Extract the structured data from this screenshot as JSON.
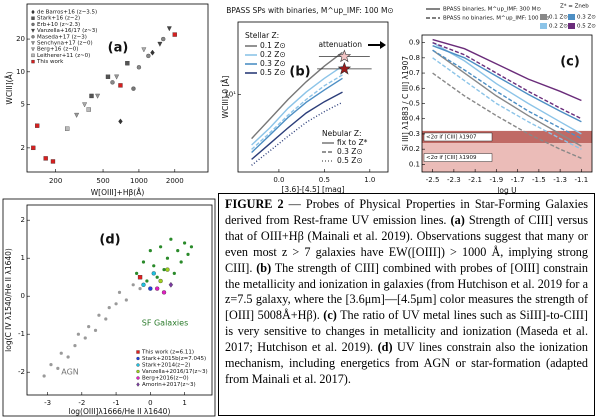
{
  "chart_data": [
    {
      "type": "scatter",
      "label": "(a)",
      "xlabel": "W[OIII]+Hβ(Å)",
      "ylabel": "WCIII](Å)",
      "xlog": true,
      "ylog": true,
      "xlim": [
        115,
        3800
      ],
      "ylim": [
        1.2,
        42
      ],
      "xticks": [
        200,
        500,
        1000,
        2000
      ],
      "yticks": [
        2,
        5,
        10,
        20
      ],
      "series": [
        {
          "name": "de Barros+16 (z~3.5)",
          "color": "#333333",
          "marker": "diamond",
          "x": [
            700,
            1300
          ],
          "y": [
            3.5,
            15
          ]
        },
        {
          "name": "Stark+16 (z~2)",
          "color": "#555555",
          "marker": "square",
          "x": [
            400,
            550,
            800
          ],
          "y": [
            6,
            9,
            12
          ]
        },
        {
          "name": "Erb+10 (z~2.3)",
          "color": "#777777",
          "marker": "circle",
          "x": [
            900
          ],
          "y": [
            7
          ]
        },
        {
          "name": "Vanzella+16/17 (z~3)",
          "color": "#444444",
          "marker": "triangle",
          "x": [
            1500,
            1800
          ],
          "y": [
            18,
            25
          ]
        },
        {
          "name": "Maseda+17 (z~3)",
          "color": "#888888",
          "marker": "circle",
          "x": [
            600,
            1000,
            1200,
            1600
          ],
          "y": [
            8,
            11,
            14,
            20
          ]
        },
        {
          "name": "Senchyna+17 (z~0)",
          "color": "#999999",
          "marker": "triangle",
          "x": [
            300,
            450,
            650
          ],
          "y": [
            4,
            6,
            9
          ]
        },
        {
          "name": "Berg+16 (z~0)",
          "color": "#aaaaaa",
          "marker": "triangle",
          "x": [
            350,
            1100
          ],
          "y": [
            5,
            16
          ]
        },
        {
          "name": "Leitherer+11 (z~0)",
          "color": "#bbbbbb",
          "marker": "square",
          "x": [
            250,
            380
          ],
          "y": [
            3,
            4.5
          ]
        },
        {
          "name": "This work",
          "color": "#d62020",
          "marker": "square",
          "x": [
            140,
            130,
            165,
            190,
            700,
            2000
          ],
          "y": [
            3.2,
            2.0,
            1.6,
            1.5,
            7.5,
            22
          ]
        }
      ]
    },
    {
      "type": "line",
      "label": "(b)",
      "title": "BPASS SPs with binaries, M^up_IMF: 100 M⊙",
      "xlabel": "[3.6]-[4.5] [mag]",
      "ylabel": "WCIII],0 [Å]",
      "annotation": "attenuation",
      "ylog": true,
      "xlim": [
        -0.45,
        1.2
      ],
      "ylim": [
        2,
        45
      ],
      "xticks": [
        {
          "value": 0,
          "label": "0.0"
        },
        {
          "value": 0.5,
          "label": "0.5"
        },
        {
          "value": 1,
          "label": "1.0"
        }
      ],
      "yticks": [
        {
          "value": 10,
          "label": "10¹"
        }
      ],
      "stellar": {
        "title": "Stellar Z:",
        "names": [
          "0.1 Z⊙",
          "0.2 Z⊙",
          "0.3 Z⊙",
          "0.5 Z⊙"
        ],
        "colors": [
          "#777777",
          "#8cc4e8",
          "#4d8fc4",
          "#2c3e7a"
        ]
      },
      "nebular": {
        "title": "Nebular Z:",
        "names": [
          "fix to Z*",
          "0.3 Z⊙",
          "0.5 Z⊙"
        ],
        "dashes": [
          "none",
          "4 2",
          "1 2"
        ]
      },
      "x": [
        -0.3,
        -0.1,
        0.1,
        0.3,
        0.5,
        0.7
      ],
      "series": [
        {
          "stellar": 0,
          "nebular": 0,
          "y": [
            4,
            6,
            9,
            13,
            18,
            24
          ]
        },
        {
          "stellar": 1,
          "nebular": 0,
          "y": [
            3.5,
            5,
            7.5,
            10.5,
            14,
            18
          ]
        },
        {
          "stellar": 2,
          "nebular": 0,
          "y": [
            3,
            4.3,
            6.2,
            8.5,
            11,
            14
          ]
        },
        {
          "stellar": 3,
          "nebular": 0,
          "y": [
            2.6,
            3.6,
            5,
            6.8,
            8.6,
            10.5
          ]
        },
        {
          "stellar": 1,
          "nebular": 1,
          "y": [
            3.2,
            4.5,
            6.5,
            9,
            12,
            15
          ]
        },
        {
          "stellar": 3,
          "nebular": 2,
          "y": [
            2.3,
            3.1,
            4.2,
            5.6,
            7,
            8.5
          ]
        }
      ],
      "markers": [
        {
          "x": 0.72,
          "y": 22,
          "xerr": 0.28,
          "color": "#f2c4c4"
        },
        {
          "x": 0.72,
          "y": 17,
          "xerr": 0.3,
          "color": "#9b1c1c"
        }
      ]
    },
    {
      "type": "line",
      "label": "(c)",
      "xlabel": "log U",
      "ylabel": "Si III] λ1883 / C III] λ1907",
      "xlim": [
        -2.6,
        -1.0
      ],
      "ylim": [
        0.05,
        0.95
      ],
      "xticks": [
        -2.5,
        -2.3,
        -2.1,
        -1.9,
        -1.7,
        -1.5,
        -1.3,
        -1.1
      ],
      "yticks": [
        0.1,
        0.2,
        0.3,
        0.4,
        0.5,
        0.6,
        0.7,
        0.8,
        0.9
      ],
      "styles": {
        "names": [
          "BPASS binaries, M^up_IMF: 300 M⊙",
          "BPASS no binaries, M^up_IMF: 100 M⊙"
        ],
        "dashes": [
          "none",
          "4 2"
        ]
      },
      "metallicity": {
        "title": "Z* = Zneb",
        "names": [
          "0.1 Z⊙",
          "0.2 Z⊙",
          "0.3 Z⊙",
          "0.5 Z⊙"
        ],
        "colors": [
          "#888888",
          "#8cc4e8",
          "#4d8fc4",
          "#6a2c7a"
        ]
      },
      "bands": [
        {
          "label": "<2σ if [CIII] λ1907",
          "y0": 0.24,
          "y1": 0.32,
          "color": "#b5504a"
        },
        {
          "label": "<2σ if [CIII] λ1909",
          "y0": 0.05,
          "y1": 0.24,
          "color": "#e8b0ac"
        }
      ],
      "x": [
        -2.5,
        -2.2,
        -1.9,
        -1.6,
        -1.3,
        -1.1
      ],
      "series": [
        {
          "style": 0,
          "z": 0,
          "y": [
            0.85,
            0.7,
            0.55,
            0.42,
            0.3,
            0.22
          ]
        },
        {
          "style": 0,
          "z": 1,
          "y": [
            0.9,
            0.78,
            0.63,
            0.5,
            0.38,
            0.3
          ]
        },
        {
          "style": 0,
          "z": 2,
          "y": [
            0.88,
            0.8,
            0.68,
            0.56,
            0.45,
            0.38
          ]
        },
        {
          "style": 0,
          "z": 3,
          "y": [
            0.92,
            0.86,
            0.76,
            0.66,
            0.58,
            0.52
          ]
        },
        {
          "style": 1,
          "z": 0,
          "y": [
            0.7,
            0.55,
            0.42,
            0.3,
            0.2,
            0.14
          ]
        },
        {
          "style": 1,
          "z": 1,
          "y": [
            0.8,
            0.65,
            0.5,
            0.38,
            0.27,
            0.2
          ]
        },
        {
          "style": 1,
          "z": 2,
          "y": [
            0.85,
            0.72,
            0.58,
            0.45,
            0.34,
            0.27
          ]
        },
        {
          "style": 1,
          "z": 3,
          "y": [
            0.9,
            0.82,
            0.7,
            0.58,
            0.47,
            0.4
          ]
        }
      ]
    },
    {
      "type": "scatter",
      "label": "(d)",
      "xlabel": "log(OIII]λ1666/He II λ1640)",
      "ylabel": "log(C IV λ1540/He II λ1640)",
      "xlim": [
        -3.6,
        1.8
      ],
      "ylim": [
        -2.6,
        2.4
      ],
      "xticks": [
        -3,
        -2,
        -1,
        0,
        1
      ],
      "yticks": [
        -2,
        -1,
        0,
        1,
        2
      ],
      "annotations": [
        {
          "text": "AGN",
          "color": "#777777"
        },
        {
          "text": "SF Galaxies",
          "color": "#2a7a2a"
        }
      ],
      "clouds": [
        {
          "color": "#9a9a9a",
          "x": [
            -3.1,
            -2.9,
            -2.7,
            -2.6,
            -2.4,
            -2.2,
            -2.1,
            -1.9,
            -1.8,
            -1.6,
            -1.5,
            -1.3,
            -1.2,
            -1.0,
            -0.9,
            -0.7,
            -0.5,
            -0.3
          ],
          "y": [
            -2.1,
            -1.8,
            -1.9,
            -1.5,
            -1.6,
            -1.3,
            -1.0,
            -1.1,
            -0.8,
            -0.9,
            -0.5,
            -0.6,
            -0.3,
            -0.2,
            0.1,
            -0.1,
            0.3,
            0.2
          ]
        },
        {
          "color": "#2a8a2a",
          "x": [
            -0.4,
            -0.2,
            0,
            0.1,
            0.3,
            0.5,
            0.6,
            0.8,
            1.0,
            1.1,
            0.2,
            0.4,
            0.7,
            0.9,
            -0.1,
            1.2
          ],
          "y": [
            0.6,
            0.9,
            1.2,
            0.8,
            1.3,
            1.0,
            1.5,
            1.2,
            1.4,
            1.1,
            0.5,
            0.7,
            0.6,
            0.9,
            0.4,
            1.3
          ]
        }
      ],
      "series": [
        {
          "name": "This work (z=6.11)",
          "color": "#e02020",
          "marker": "square",
          "x": [
            -0.3
          ],
          "y": [
            0.5
          ]
        },
        {
          "name": "Stark+2015b(z=7.045)",
          "color": "#2040e0",
          "marker": "circle",
          "x": [
            0.0
          ],
          "y": [
            0.2
          ]
        },
        {
          "name": "Stark+2014(z~2)",
          "color": "#20c0e0",
          "marker": "circle",
          "x": [
            -0.2,
            0.1
          ],
          "y": [
            0.3,
            0.6
          ]
        },
        {
          "name": "Vanzella+2016/17(z~3)",
          "color": "#a0d020",
          "marker": "circle",
          "x": [
            0.3,
            0.5
          ],
          "y": [
            0.4,
            0.7
          ]
        },
        {
          "name": "Berg+2016(z~0)",
          "color": "#e020c0",
          "marker": "circle",
          "x": [
            0.2,
            0.4
          ],
          "y": [
            0.2,
            0.1
          ]
        },
        {
          "name": "Amorin+2017(z~3)",
          "color": "#7a3aa0",
          "marker": "diamond",
          "x": [
            0.6
          ],
          "y": [
            0.3
          ]
        }
      ]
    }
  ],
  "caption": {
    "runs": [
      {
        "text": "FIGURE 2",
        "bold": true
      },
      {
        "text": " — Probes of Physical Properties in Star-Forming Galaxies derived from Rest-frame UV emission lines. ",
        "bold": false
      },
      {
        "text": "(a)",
        "bold": true
      },
      {
        "text": " Strength of CIII] versus that of OIII+Hβ (Mainali et al. 2019). Observations suggest that many or even most z > 7 galaxies have EW([OIII]) > 1000 Å, implying strong CIII]. ",
        "bold": false
      },
      {
        "text": "(b)",
        "bold": true
      },
      {
        "text": " The strength of CIII] combined with probes of [OIII] constrain the metallicity and ionization in galaxies (from Hutchison et al. 2019 for a z=7.5 galaxy, where the [3.6μm]—[4.5μm] color measures the strength of [OIII] 5008Å+Hβ). ",
        "bold": false
      },
      {
        "text": "(c)",
        "bold": true
      },
      {
        "text": " The ratio of UV metal lines such as SiIII]-to-CIII] is very sensitive to changes in metallicity and ionization (Maseda et al. 2017; Hutchison et al. 2019). ",
        "bold": false
      },
      {
        "text": "(d)",
        "bold": true
      },
      {
        "text": " UV lines constrain also the ionization mechanism, including energetics from AGN or star-formation (adapted from Mainali et al. 2017).",
        "bold": false
      }
    ]
  }
}
